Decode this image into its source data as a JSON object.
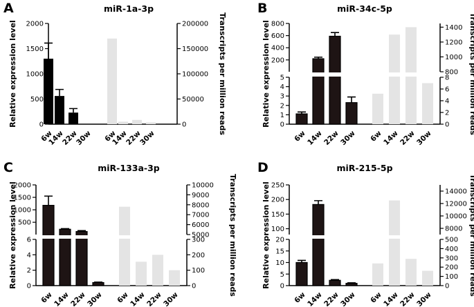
{
  "chart_data": [
    {
      "panel": "A",
      "title": "miR-1a-3p",
      "type": "bar",
      "ylabel_left": "Relative expression level",
      "ylabel_right": "Transcripts per million reads",
      "left_ticks": [
        "0",
        "500",
        "1000",
        "1500",
        "2000"
      ],
      "right_ticks": [
        "0",
        "50000",
        "100000",
        "150000",
        "200000"
      ],
      "ylim_left": [
        0,
        2000
      ],
      "ylim_right": [
        0,
        200000
      ],
      "categories": [
        "6w",
        "14w",
        "22w",
        "30w"
      ],
      "series": [
        {
          "name": "Relative expression level",
          "axis": "left",
          "values": [
            1300,
            560,
            230,
            0
          ],
          "errors": [
            310,
            130,
            80,
            0
          ]
        },
        {
          "name": "Transcripts per million reads",
          "axis": "right",
          "values": [
            170000,
            5000,
            8500,
            3500
          ]
        }
      ]
    },
    {
      "panel": "B",
      "title": "miR-34c-5p",
      "type": "bar",
      "ylabel_left": "Relative expression level",
      "ylabel_right": "Transcripts per million reads",
      "left_ticks_upper": [
        "200",
        "400",
        "600",
        "800"
      ],
      "left_ticks_lower": [
        "0",
        "1",
        "2",
        "3",
        "4",
        "5"
      ],
      "right_ticks_upper": [
        "800",
        "1000",
        "1200",
        "1400"
      ],
      "right_ticks_lower": [
        "0",
        "2",
        "4",
        "6",
        "8"
      ],
      "ylim_left_lower": [
        0,
        5
      ],
      "ylim_left_upper": [
        5,
        800
      ],
      "ylim_right_lower": [
        0,
        8
      ],
      "ylim_right_upper": [
        800,
        1450
      ],
      "categories": [
        "6w",
        "14w",
        "22w",
        "30w"
      ],
      "series": [
        {
          "name": "Relative expression level",
          "axis": "left",
          "values": [
            1.1,
            220,
            590,
            2.3
          ],
          "errors": [
            0.2,
            25,
            60,
            0.6
          ]
        },
        {
          "name": "Transcripts per million reads",
          "axis": "right",
          "values": [
            5.2,
            1300,
            1400,
            7.0
          ]
        }
      ]
    },
    {
      "panel": "C",
      "title": "miR-133a-3p",
      "type": "bar",
      "ylabel_left": "Relative expression level",
      "ylabel_right": "Transcripts per million reads",
      "left_ticks_upper": [
        "500",
        "1000",
        "1500",
        "2000"
      ],
      "left_ticks_lower": [
        "0",
        "2",
        "4",
        "6"
      ],
      "right_ticks_upper": [
        "5000",
        "6000",
        "7000",
        "8000",
        "9000",
        "10000"
      ],
      "right_ticks_lower": [
        "0",
        "100",
        "200",
        "300"
      ],
      "ylim_left_lower": [
        0,
        6
      ],
      "ylim_left_upper": [
        6,
        2000
      ],
      "ylim_right_lower": [
        0,
        300
      ],
      "ylim_right_upper": [
        5000,
        10000
      ],
      "categories": [
        "6w",
        "14w",
        "22w",
        "30w"
      ],
      "series": [
        {
          "name": "Relative expression level",
          "axis": "left",
          "values": [
            1180,
            220,
            130,
            0.4
          ],
          "errors": [
            370,
            25,
            35,
            0.05
          ]
        },
        {
          "name": "Transcripts per million reads",
          "axis": "right",
          "values": [
            7800,
            155,
            200,
            100
          ]
        }
      ]
    },
    {
      "panel": "D",
      "title": "miR-215-5p",
      "type": "bar",
      "ylabel_left": "Relative expression level",
      "ylabel_right": "Transcripts per million reads",
      "left_ticks_upper": [
        "100",
        "150",
        "200",
        "250"
      ],
      "left_ticks_lower": [
        "0",
        "5",
        "10",
        "15",
        "20"
      ],
      "right_ticks_upper": [
        "8000",
        "10000",
        "12000",
        "14000"
      ],
      "right_ticks_lower": [
        "0",
        "100",
        "200",
        "300",
        "400",
        "500"
      ],
      "ylim_left_lower": [
        0,
        20
      ],
      "ylim_left_upper": [
        80,
        250
      ],
      "ylim_right_lower": [
        0,
        500
      ],
      "ylim_right_upper": [
        7000,
        15000
      ],
      "categories": [
        "6w",
        "14w",
        "22w",
        "30w"
      ],
      "series": [
        {
          "name": "Relative expression level",
          "axis": "left",
          "values": [
            10,
            183,
            2.3,
            1.0
          ],
          "errors": [
            0.9,
            13,
            0.3,
            0.2
          ]
        },
        {
          "name": "Transcripts per million reads",
          "axis": "right",
          "values": [
            240,
            12500,
            290,
            160
          ]
        }
      ]
    }
  ],
  "colors": {
    "dark_bar": "#1e1414",
    "light_bar": "#e4e4e4",
    "axis": "#000000"
  }
}
